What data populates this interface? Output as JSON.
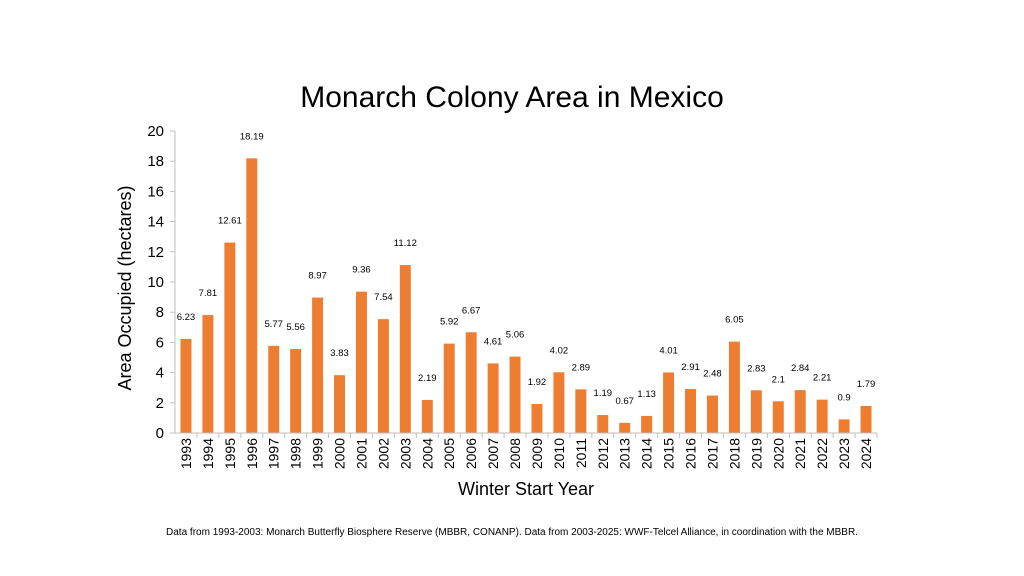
{
  "chart_data": {
    "type": "bar",
    "title": "Monarch Colony Area in Mexico",
    "xlabel": "Winter Start Year",
    "ylabel": "Area Occupied (hectares)",
    "ylim": [
      0,
      20
    ],
    "yticks": [
      0,
      2,
      4,
      6,
      8,
      10,
      12,
      14,
      16,
      18,
      20
    ],
    "categories": [
      "1993",
      "1994",
      "1995",
      "1996",
      "1997",
      "1998",
      "1999",
      "2000",
      "2001",
      "2002",
      "2003",
      "2004",
      "2005",
      "2006",
      "2007",
      "2008",
      "2009",
      "2010",
      "2011",
      "2012",
      "2013",
      "2014",
      "2015",
      "2016",
      "2017",
      "2018",
      "2019",
      "2020",
      "2021",
      "2022",
      "2023",
      "2024"
    ],
    "values": [
      6.23,
      7.81,
      12.61,
      18.19,
      5.77,
      5.56,
      8.97,
      3.83,
      9.36,
      7.54,
      11.12,
      2.19,
      5.92,
      6.67,
      4.61,
      5.06,
      1.92,
      4.02,
      2.89,
      1.19,
      0.67,
      1.13,
      4.01,
      2.91,
      2.48,
      6.05,
      2.83,
      2.1,
      2.84,
      2.21,
      0.9,
      1.79
    ],
    "bar_color": "#ED7D31",
    "grid": false,
    "legend": "none"
  },
  "footer": "Data from 1993-2003: Monarch Butterfly Biosphere Reserve (MBBR, CONANP). Data from 2003-2025: WWF-Telcel Alliance, in coordination with the MBBR."
}
